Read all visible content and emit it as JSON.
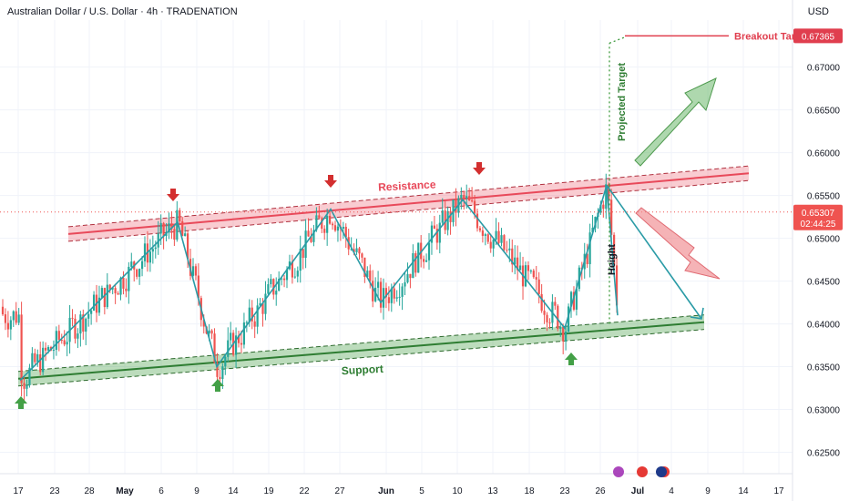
{
  "header": {
    "title": "Australian Dollar / U.S. Dollar · 4h · TRADENATION",
    "currency": "USD"
  },
  "chart_data": {
    "type": "candlestick",
    "symbol": "AUDUSD",
    "timeframe": "4h",
    "ylim": [
      0.6225,
      0.6755
    ],
    "y_ticks": [
      "0.62500",
      "0.63000",
      "0.63500",
      "0.64000",
      "0.64500",
      "0.65000",
      "0.65500",
      "0.66000",
      "0.66500",
      "0.67000"
    ],
    "x_ticks": [
      "17",
      "23",
      "28",
      "May",
      "6",
      "9",
      "14",
      "19",
      "22",
      "27",
      "Jun",
      "5",
      "10",
      "13",
      "18",
      "23",
      "26",
      "Jul",
      "4",
      "9",
      "14",
      "17"
    ],
    "current_price": "0.65307",
    "countdown": "02:44:25",
    "breakout_target": {
      "label": "Breakout Target",
      "price": "0.67365"
    },
    "annotations": {
      "resistance": "Resistance",
      "support": "Support",
      "projected": "Projected Target",
      "height": "Height"
    },
    "resistance_line": [
      [
        0,
        0.6505
      ],
      [
        1,
        0.6576
      ]
    ],
    "support_line": [
      [
        0,
        0.6336
      ],
      [
        1,
        0.6402
      ]
    ],
    "zigzag": [
      0.6334,
      0.6519,
      0.635,
      0.6534,
      0.6425,
      0.6545,
      0.6395,
      0.6562,
      0.641
    ],
    "candles_approx": 230,
    "colors": {
      "up": "#26a69a",
      "down": "#ef5350",
      "resistance": "#e8495a",
      "support": "#3f9b3f",
      "zigzag": "#2a9ba6",
      "bullish": "#6cb86c",
      "bearish": "#f08a8f",
      "target": "#e03e4e"
    }
  }
}
